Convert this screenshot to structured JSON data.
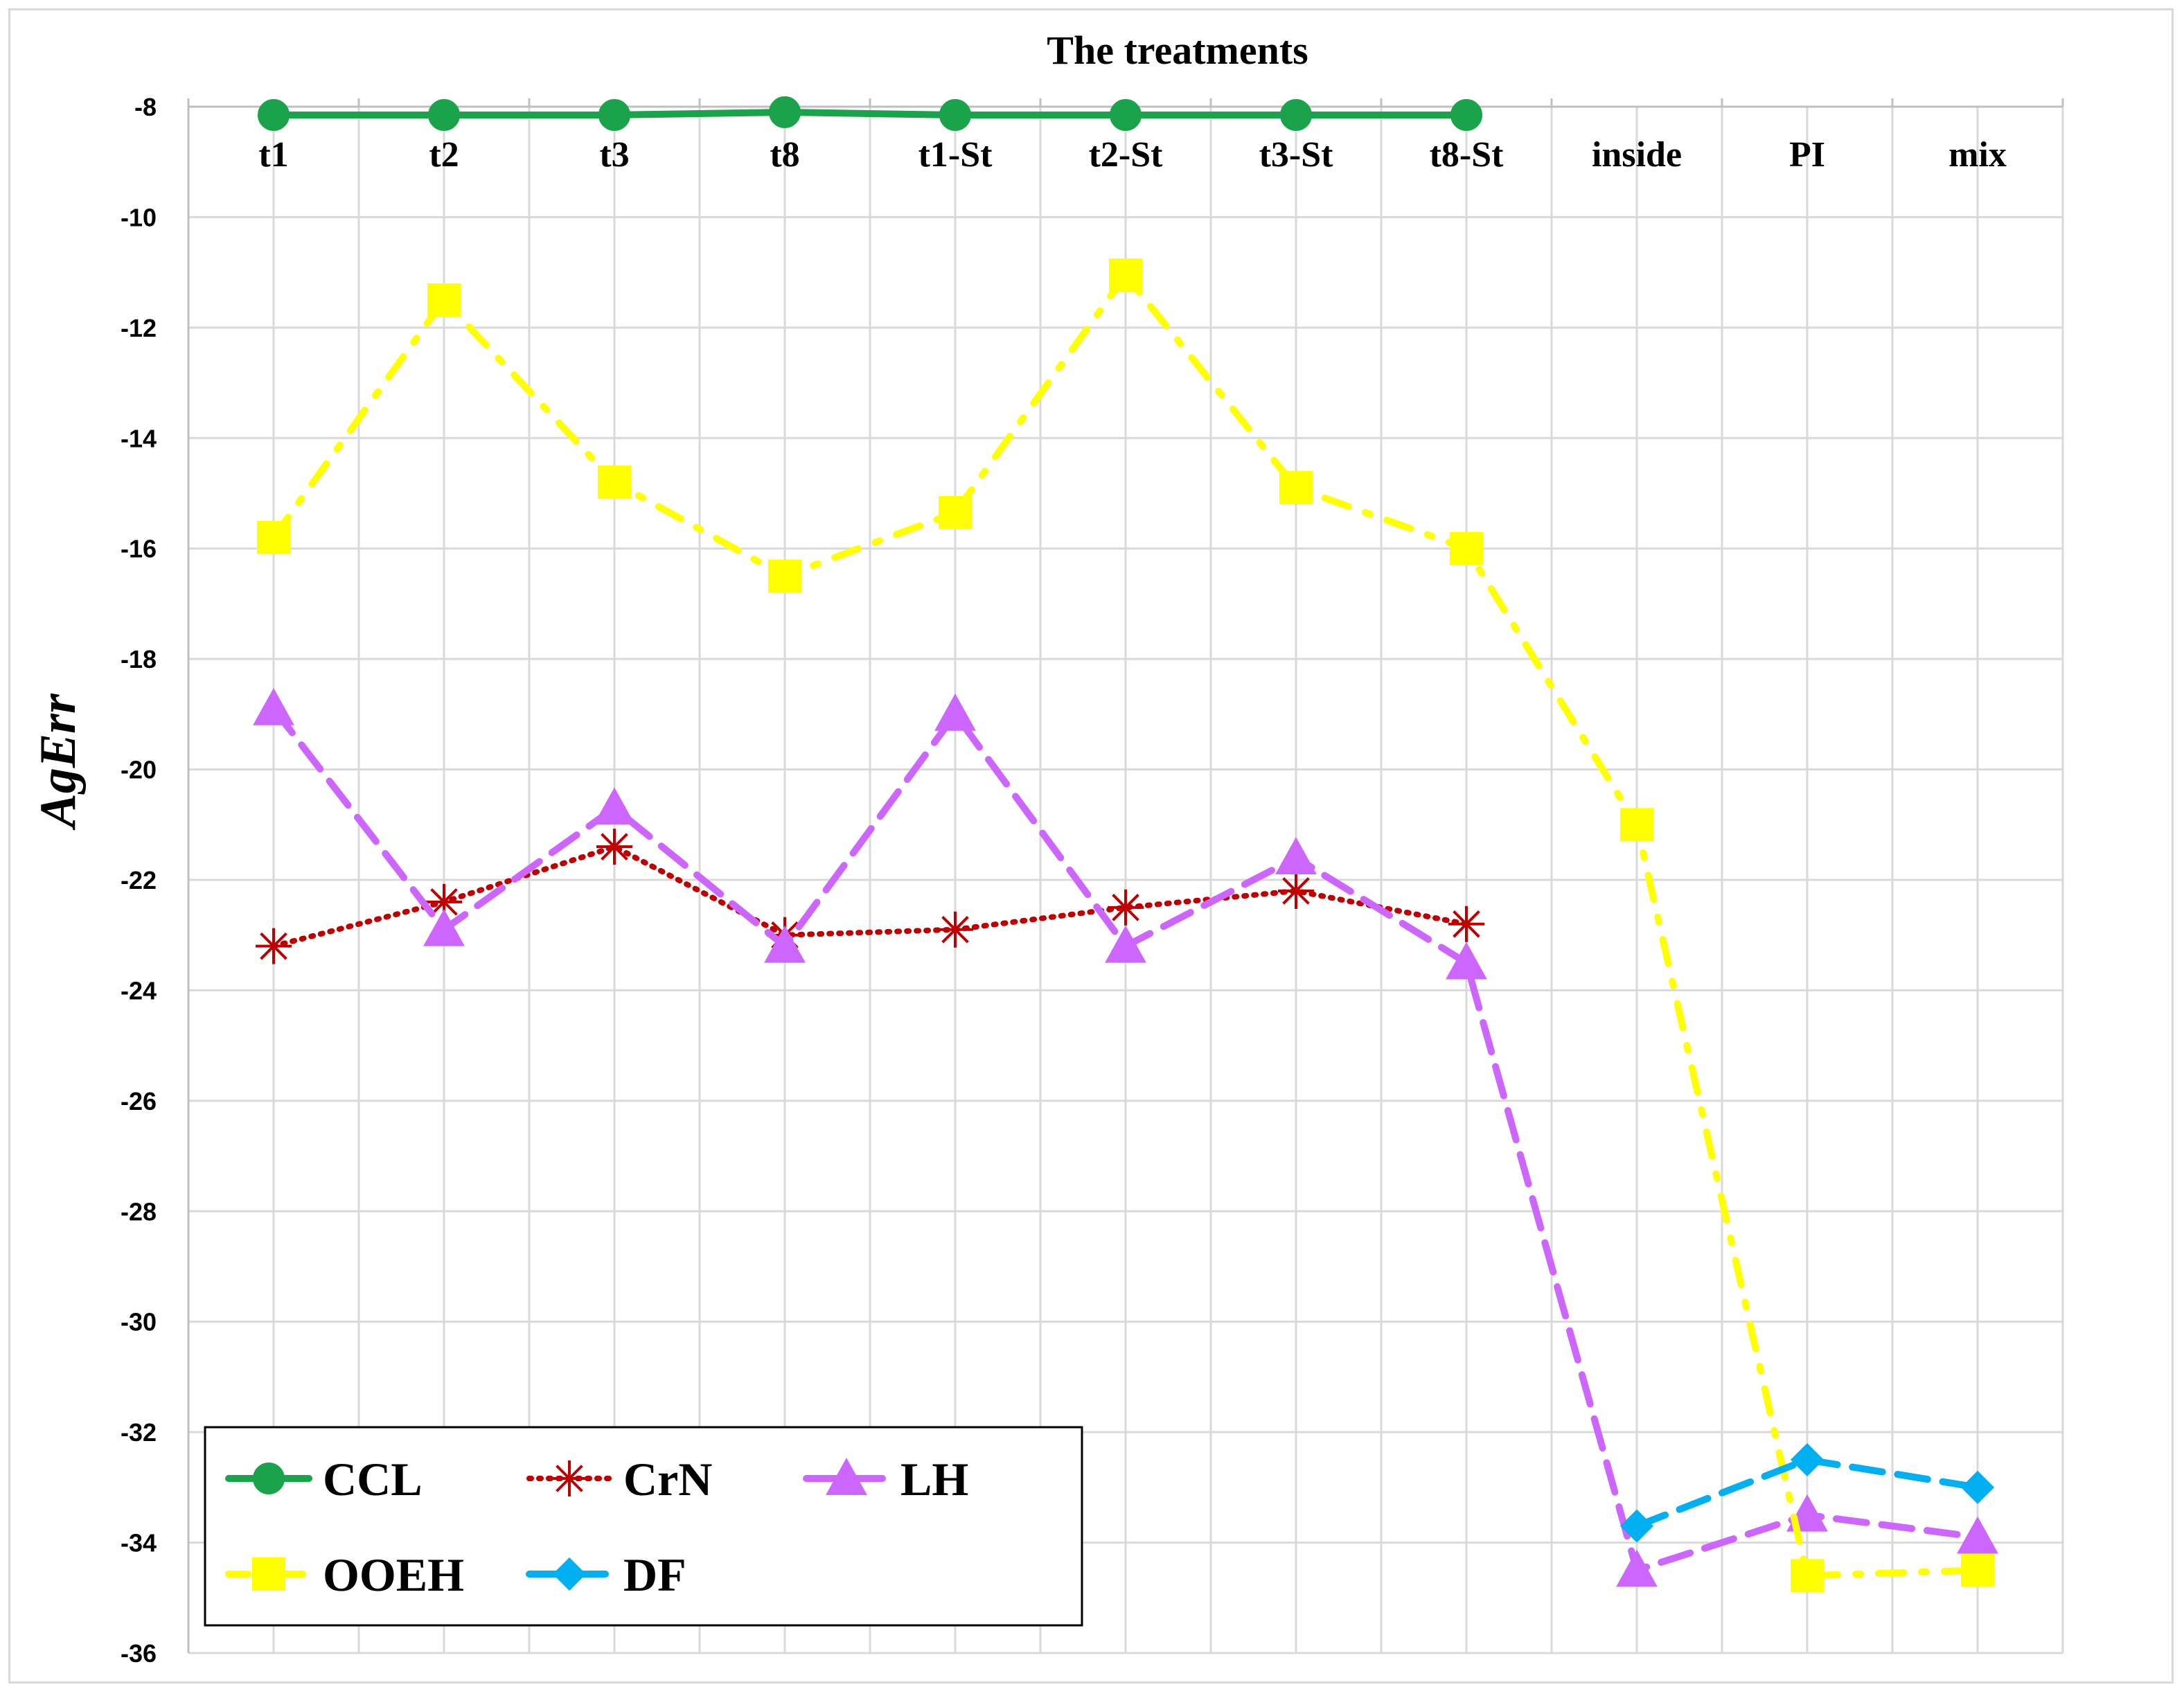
{
  "chart_data": {
    "type": "line",
    "title": "The treatments",
    "xlabel": "The treatments",
    "ylabel": "AgErr",
    "categories": [
      "t1",
      "t2",
      "t3",
      "t8",
      "t1-St",
      "t2-St",
      "t3-St",
      "t8-St",
      "inside",
      "PI",
      "mix"
    ],
    "ylim": [
      -36,
      -8
    ],
    "yticks": [
      -8,
      -10,
      -12,
      -14,
      -16,
      -18,
      -20,
      -22,
      -24,
      -26,
      -28,
      -30,
      -32,
      -34,
      -36
    ],
    "grid": true,
    "x_axis_position": "top",
    "legend_position": "bottom-left",
    "series": [
      {
        "name": "CCL",
        "color": "#1aa34a",
        "dash": "solid",
        "marker": "circle",
        "values": [
          -8.15,
          -8.15,
          -8.15,
          -8.1,
          -8.15,
          -8.15,
          -8.15,
          -8.15,
          null,
          null,
          null
        ]
      },
      {
        "name": "CrN",
        "color": "#c00000",
        "dash": "dotted",
        "marker": "asterisk",
        "values": [
          -23.2,
          -22.4,
          -21.4,
          -23.0,
          -22.9,
          -22.5,
          -22.2,
          -22.8,
          null,
          null,
          null
        ]
      },
      {
        "name": "LH",
        "color": "#cc66ff",
        "dash": "dashed",
        "marker": "triangle",
        "values": [
          -18.9,
          -22.9,
          -20.7,
          -23.2,
          -19.0,
          -23.2,
          -21.6,
          -23.5,
          -34.5,
          -33.5,
          -33.9
        ]
      },
      {
        "name": "OOEH",
        "color": "#ffff00",
        "dash": "dashdot",
        "marker": "square",
        "values": [
          -15.8,
          -11.5,
          -14.8,
          -16.5,
          -15.35,
          -11.05,
          -14.9,
          -16.0,
          -21.0,
          -34.6,
          -34.5
        ]
      },
      {
        "name": "DF",
        "color": "#00b0f0",
        "dash": "dashed",
        "marker": "diamond",
        "values": [
          null,
          null,
          null,
          null,
          null,
          null,
          null,
          null,
          -33.7,
          -32.5,
          -33.0
        ]
      }
    ]
  }
}
